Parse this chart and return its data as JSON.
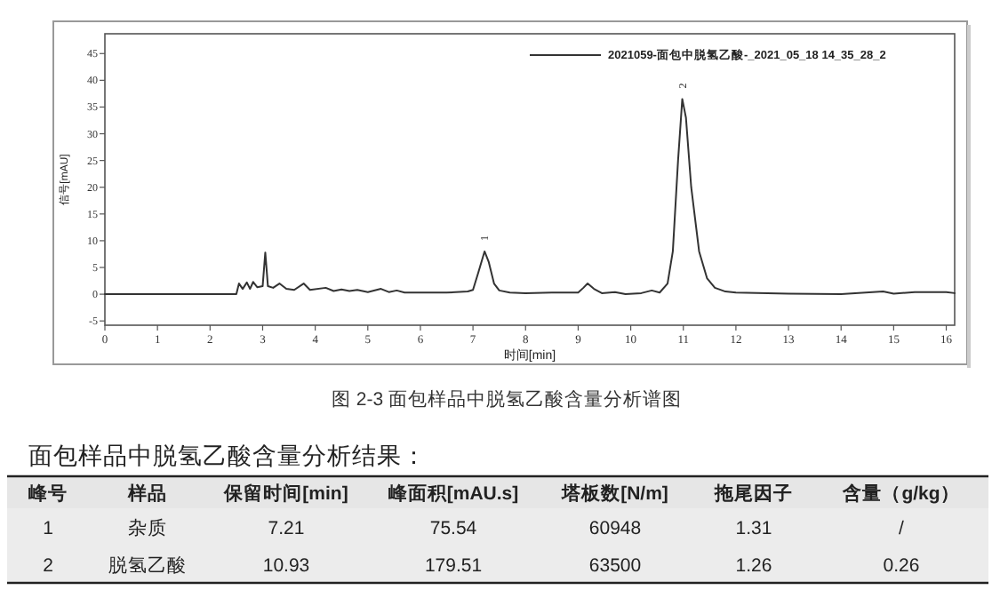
{
  "chart_data": [
    {
      "type": "line",
      "xlabel": "时间[min]",
      "ylabel": "信号[mAU]",
      "xlim": [
        0,
        16.16
      ],
      "ylim": [
        -5.8,
        48.7
      ],
      "xticks": [
        0,
        1,
        2,
        3,
        4,
        5,
        6,
        7,
        8,
        9,
        10,
        11,
        12,
        13,
        14,
        15,
        16
      ],
      "yticks": [
        -5,
        0,
        5,
        10,
        15,
        20,
        25,
        30,
        35,
        40,
        45
      ],
      "grid": false,
      "legend": "top right",
      "marker": "none",
      "line_style": "solid",
      "series": [
        {
          "name": "2021059-面包中脱氢乙酸-_2021_05_18 14_35_28_2",
          "color": "#333333",
          "x": [
            0,
            2.5,
            2.55,
            2.62,
            2.7,
            2.76,
            2.82,
            2.9,
            3.0,
            3.05,
            3.1,
            3.2,
            3.32,
            3.45,
            3.6,
            3.78,
            3.9,
            4.2,
            4.35,
            4.5,
            4.65,
            4.8,
            5.0,
            5.25,
            5.4,
            5.55,
            5.7,
            6.0,
            6.5,
            6.9,
            7.0,
            7.1,
            7.22,
            7.3,
            7.4,
            7.5,
            7.7,
            8.0,
            8.5,
            9.0,
            9.1,
            9.18,
            9.3,
            9.45,
            9.7,
            9.9,
            10.2,
            10.4,
            10.55,
            10.7,
            10.8,
            10.9,
            10.98,
            11.05,
            11.15,
            11.3,
            11.45,
            11.6,
            11.8,
            12.0,
            13.0,
            14.0,
            14.8,
            15.0,
            15.4,
            16.0,
            16.16
          ],
          "values": [
            0,
            0,
            2.0,
            1.0,
            2.2,
            1.0,
            2.3,
            1.3,
            1.5,
            7.8,
            1.5,
            1.2,
            2.0,
            1.0,
            0.8,
            2.0,
            0.8,
            1.2,
            0.6,
            0.9,
            0.6,
            0.8,
            0.4,
            1.0,
            0.4,
            0.7,
            0.3,
            0.3,
            0.3,
            0.5,
            0.8,
            4,
            8.0,
            6,
            2,
            0.7,
            0.3,
            0.2,
            0.3,
            0.3,
            1.2,
            2.0,
            1.0,
            0.2,
            0.4,
            0,
            0.2,
            0.7,
            0.3,
            2,
            8,
            25,
            36.5,
            33,
            20,
            8,
            3,
            1.2,
            0.5,
            0.3,
            0.1,
            0,
            0.5,
            0.1,
            0.4,
            0.4,
            0.2
          ]
        }
      ],
      "annotations": [
        {
          "text": "1",
          "x": 7.22,
          "y": 8.0
        },
        {
          "text": "2",
          "x": 10.98,
          "y": 36.5
        },
        "图 2-3 面包样品中脱氢乙酸含量分析谱图"
      ]
    },
    {
      "type": "other",
      "title": "面包样品中脱氢乙酸含量分析结果：",
      "annotations": [
        "峰号",
        "样品",
        "保留时间[min]",
        "峰面积[mAU.s]",
        "塔板数[N/m]",
        "拖尾因子",
        "含量（g/kg）",
        "1",
        "杂质",
        "7.21",
        "75.54",
        "60948",
        "1.31",
        "/",
        "2",
        "脱氢乙酸",
        "10.93",
        "179.51",
        "63500",
        "1.26",
        "0.26"
      ]
    }
  ]
}
